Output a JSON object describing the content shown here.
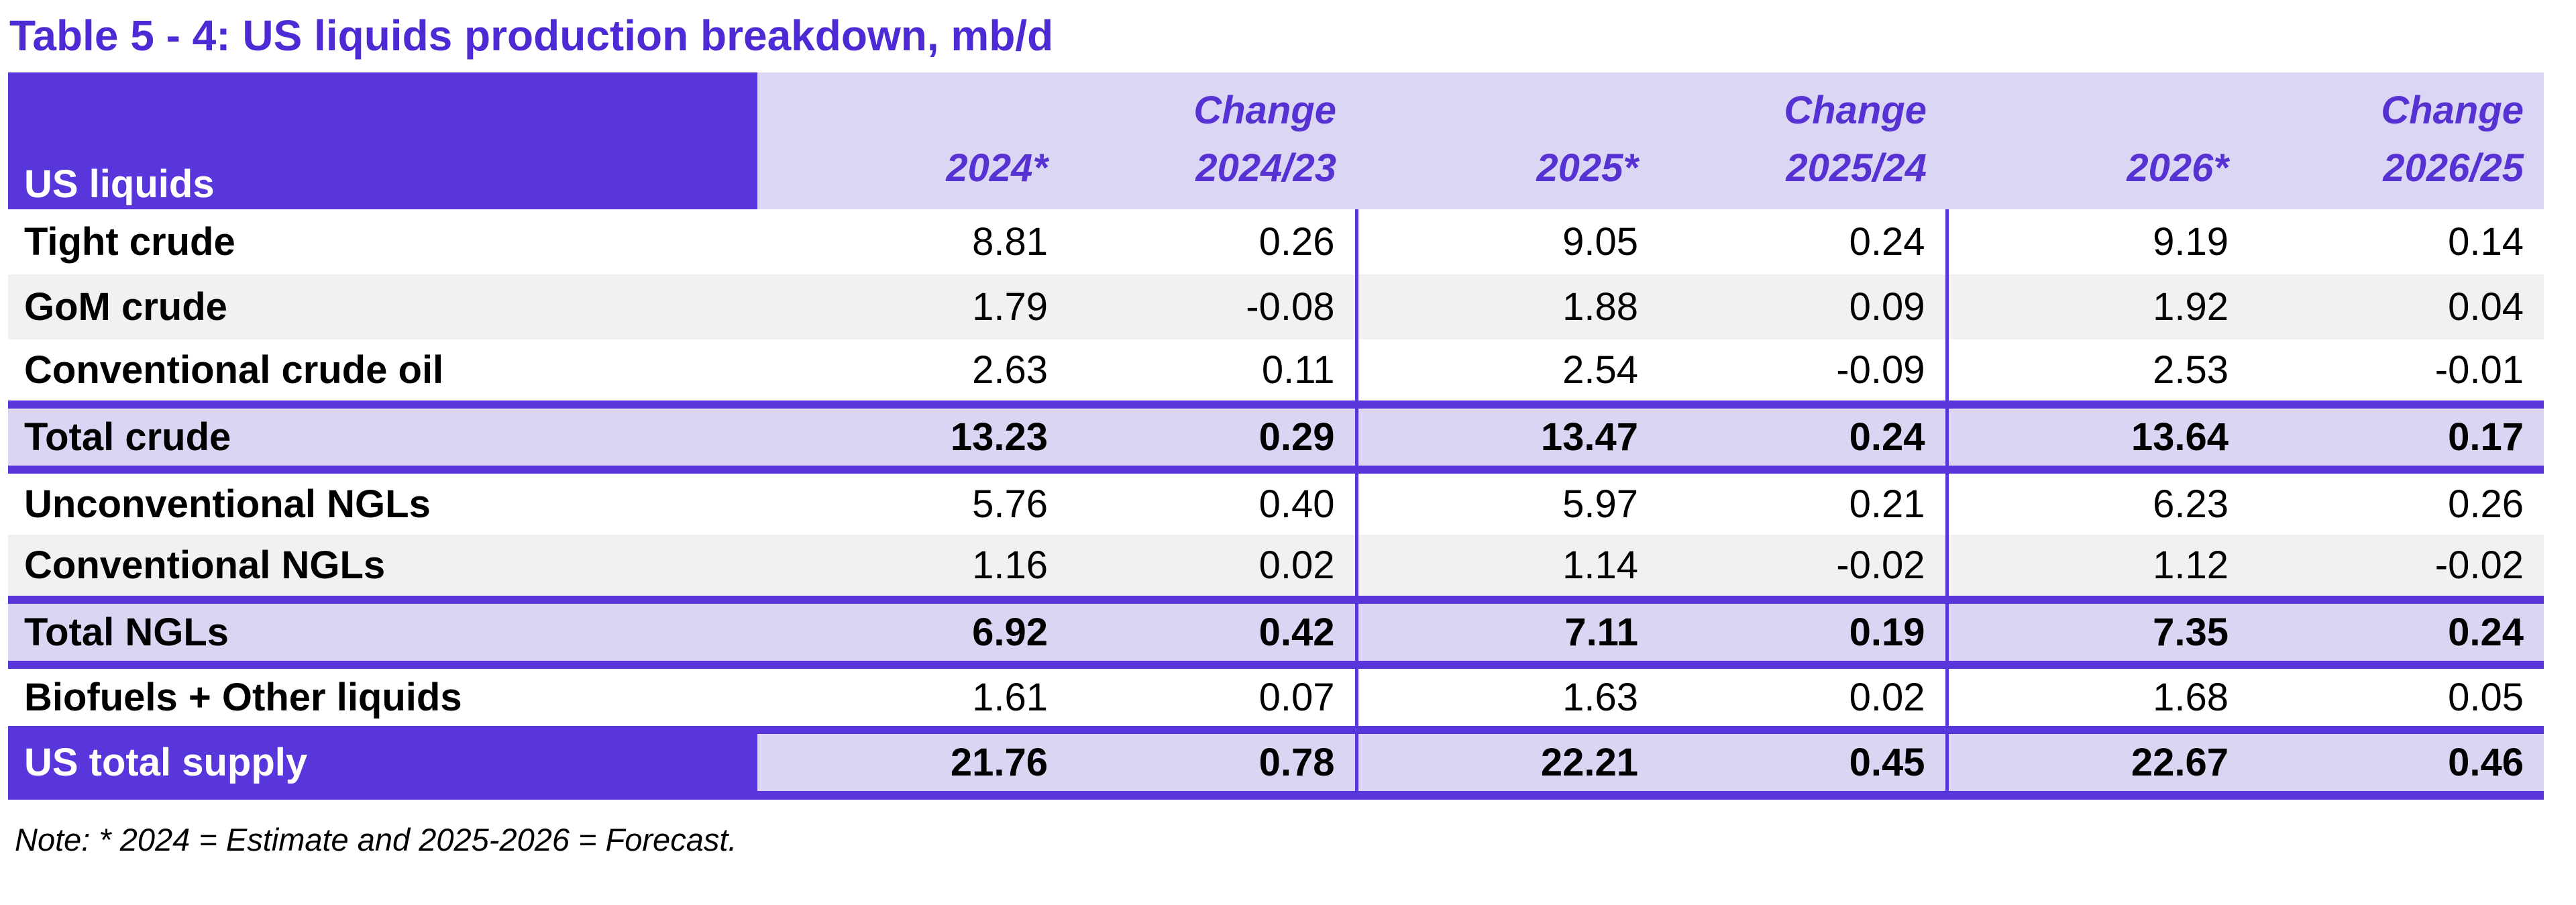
{
  "title": "Table 5 - 4: US liquids production breakdown, mb/d",
  "note": "Note: * 2024 = Estimate and 2025-2026 = Forecast.",
  "colors": {
    "accent_purple": "#5936DB",
    "header_light_bg": "#DCD6F5",
    "total_row_bg": "#DBD5F3",
    "alt_row_bg": "#F1F0F2",
    "title_text": "#4E2AD5",
    "header_text": "#5732D2",
    "body_text": "#000000"
  },
  "table": {
    "header": {
      "label": "US liquids",
      "groups": [
        {
          "change_label": "Change",
          "year": "2024*",
          "change_period": "2024/23"
        },
        {
          "change_label": "Change",
          "year": "2025*",
          "change_period": "2025/24"
        },
        {
          "change_label": "Change",
          "year": "2026*",
          "change_period": "2026/25"
        }
      ]
    },
    "rows": [
      {
        "label": "Tight crude",
        "style": "white",
        "values": [
          "8.81",
          "0.26",
          "9.05",
          "0.24",
          "9.19",
          "0.14"
        ]
      },
      {
        "label": "GoM crude",
        "style": "gray",
        "values": [
          "1.79",
          "-0.08",
          "1.88",
          "0.09",
          "1.92",
          "0.04"
        ]
      },
      {
        "label": "Conventional crude oil",
        "style": "white",
        "values": [
          "2.63",
          "0.11",
          "2.54",
          "-0.09",
          "2.53",
          "-0.01"
        ]
      },
      {
        "label": "Total crude",
        "style": "total",
        "values": [
          "13.23",
          "0.29",
          "13.47",
          "0.24",
          "13.64",
          "0.17"
        ]
      },
      {
        "label": "Unconventional NGLs",
        "style": "white",
        "values": [
          "5.76",
          "0.40",
          "5.97",
          "0.21",
          "6.23",
          "0.26"
        ]
      },
      {
        "label": "Conventional NGLs",
        "style": "gray",
        "values": [
          "1.16",
          "0.02",
          "1.14",
          "-0.02",
          "1.12",
          "-0.02"
        ]
      },
      {
        "label": "Total NGLs",
        "style": "total",
        "values": [
          "6.92",
          "0.42",
          "7.11",
          "0.19",
          "7.35",
          "0.24"
        ]
      },
      {
        "label": "Biofuels + Other liquids",
        "style": "white",
        "values": [
          "1.61",
          "0.07",
          "1.63",
          "0.02",
          "1.68",
          "0.05"
        ]
      },
      {
        "label": "US total supply",
        "style": "grand_total",
        "values": [
          "21.76",
          "0.78",
          "22.21",
          "0.45",
          "22.67",
          "0.46"
        ]
      }
    ]
  }
}
